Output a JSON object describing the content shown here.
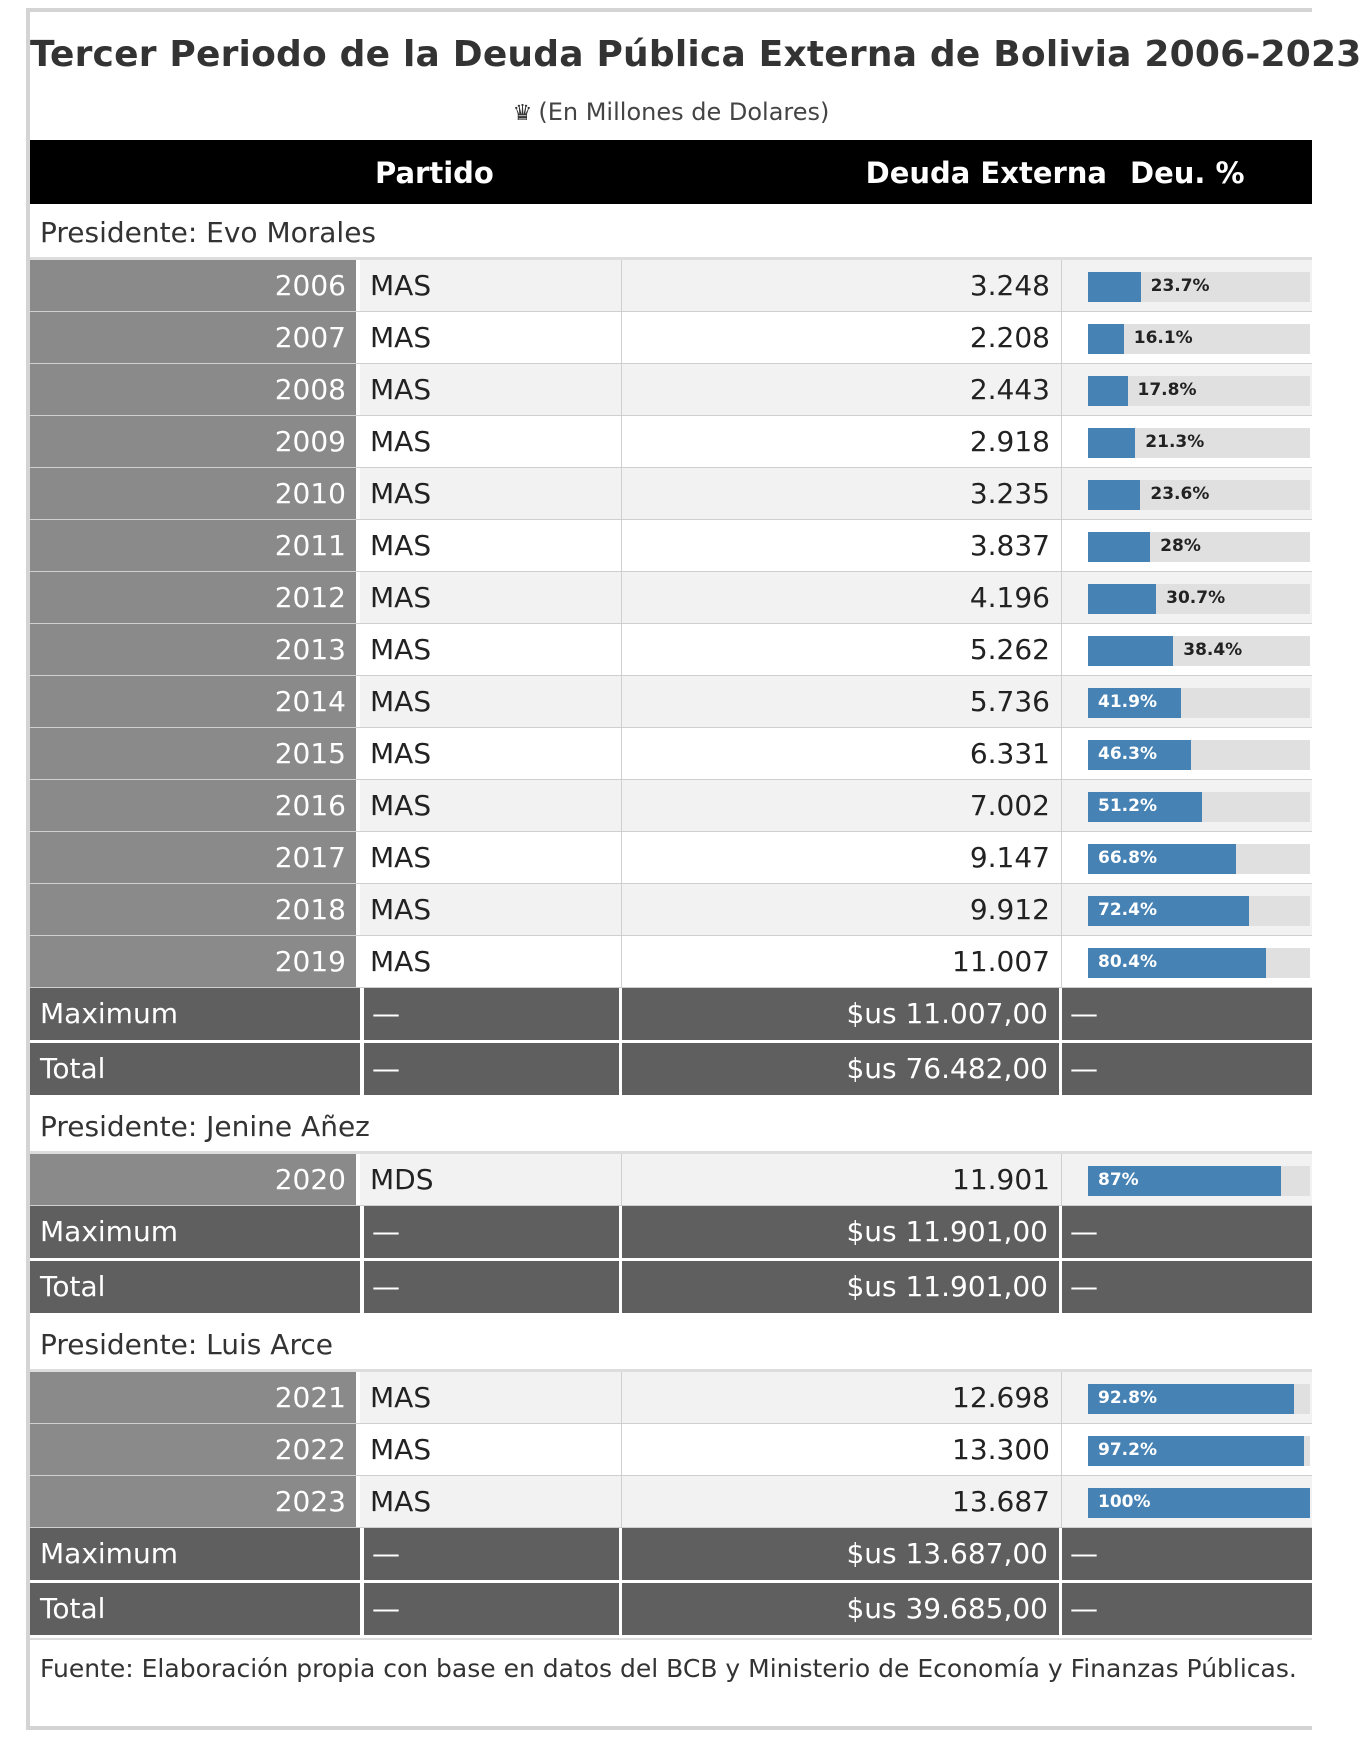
{
  "title": "Tercer Periodo de la Deuda Pública Externa de Bolivia 2006-2023",
  "subtitle": "(En Millones de Dolares)",
  "subtitle_icon": "crown-icon",
  "columns": {
    "party": "Partido",
    "debt": "Deuda Externa",
    "pct": "Deu. %"
  },
  "groups": [
    {
      "label": "Presidente: Evo Morales",
      "rows": [
        {
          "year": "2006",
          "party": "MAS",
          "debt": "3.248",
          "pct_label": "23.7%",
          "pct": 23.7
        },
        {
          "year": "2007",
          "party": "MAS",
          "debt": "2.208",
          "pct_label": "16.1%",
          "pct": 16.1
        },
        {
          "year": "2008",
          "party": "MAS",
          "debt": "2.443",
          "pct_label": "17.8%",
          "pct": 17.8
        },
        {
          "year": "2009",
          "party": "MAS",
          "debt": "2.918",
          "pct_label": "21.3%",
          "pct": 21.3
        },
        {
          "year": "2010",
          "party": "MAS",
          "debt": "3.235",
          "pct_label": "23.6%",
          "pct": 23.6
        },
        {
          "year": "2011",
          "party": "MAS",
          "debt": "3.837",
          "pct_label": "28%",
          "pct": 28
        },
        {
          "year": "2012",
          "party": "MAS",
          "debt": "4.196",
          "pct_label": "30.7%",
          "pct": 30.7
        },
        {
          "year": "2013",
          "party": "MAS",
          "debt": "5.262",
          "pct_label": "38.4%",
          "pct": 38.4
        },
        {
          "year": "2014",
          "party": "MAS",
          "debt": "5.736",
          "pct_label": "41.9%",
          "pct": 41.9
        },
        {
          "year": "2015",
          "party": "MAS",
          "debt": "6.331",
          "pct_label": "46.3%",
          "pct": 46.3
        },
        {
          "year": "2016",
          "party": "MAS",
          "debt": "7.002",
          "pct_label": "51.2%",
          "pct": 51.2
        },
        {
          "year": "2017",
          "party": "MAS",
          "debt": "9.147",
          "pct_label": "66.8%",
          "pct": 66.8
        },
        {
          "year": "2018",
          "party": "MAS",
          "debt": "9.912",
          "pct_label": "72.4%",
          "pct": 72.4
        },
        {
          "year": "2019",
          "party": "MAS",
          "debt": "11.007",
          "pct_label": "80.4%",
          "pct": 80.4
        }
      ],
      "summary": [
        {
          "label": "Maximum",
          "dash": "—",
          "value": "$us 11.007,00",
          "dash2": "—"
        },
        {
          "label": "Total",
          "dash": "—",
          "value": "$us 76.482,00",
          "dash2": "—"
        }
      ]
    },
    {
      "label": "Presidente: Jenine Añez",
      "rows": [
        {
          "year": "2020",
          "party": "MDS",
          "debt": "11.901",
          "pct_label": "87%",
          "pct": 87
        }
      ],
      "summary": [
        {
          "label": "Maximum",
          "dash": "—",
          "value": "$us 11.901,00",
          "dash2": "—"
        },
        {
          "label": "Total",
          "dash": "—",
          "value": "$us 11.901,00",
          "dash2": "—"
        }
      ]
    },
    {
      "label": "Presidente: Luis Arce",
      "rows": [
        {
          "year": "2021",
          "party": "MAS",
          "debt": "12.698",
          "pct_label": "92.8%",
          "pct": 92.8
        },
        {
          "year": "2022",
          "party": "MAS",
          "debt": "13.300",
          "pct_label": "97.2%",
          "pct": 97.2
        },
        {
          "year": "2023",
          "party": "MAS",
          "debt": "13.687",
          "pct_label": "100%",
          "pct": 100
        }
      ],
      "summary": [
        {
          "label": "Maximum",
          "dash": "—",
          "value": "$us 13.687,00",
          "dash2": "—"
        },
        {
          "label": "Total",
          "dash": "—",
          "value": "$us 39.685,00",
          "dash2": "—"
        }
      ]
    }
  ],
  "footer": "Fuente: Elaboración propia con base en datos del BCB y Ministerio de Economía y Finanzas Públicas.",
  "colors": {
    "bar": "#4682b4",
    "bar_track": "#e0e0e0",
    "header_bg": "#000000",
    "year_bg": "#8a8a8a",
    "summary_bg": "#5f5f5f"
  }
}
